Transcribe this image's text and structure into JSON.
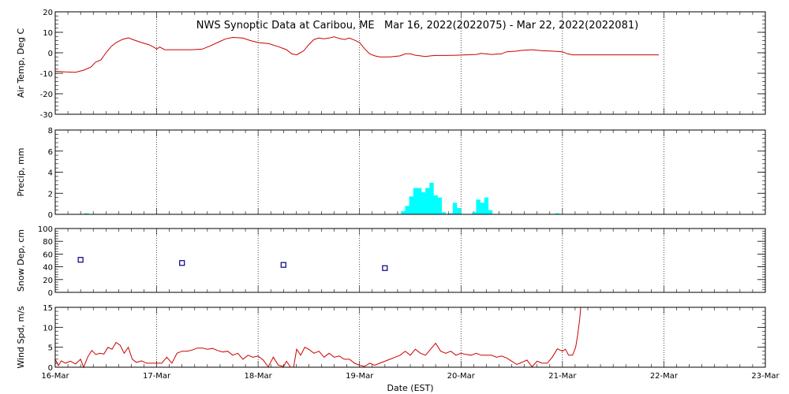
{
  "chart_data": {
    "type": "line",
    "title": "NWS Synoptic Data at Caribou, ME   Mar 16, 2022(2022075) - Mar 22, 2022(2022081)",
    "xlabel": "Date (EST)",
    "x_ticks": [
      "16-Mar",
      "17-Mar",
      "18-Mar",
      "19-Mar",
      "20-Mar",
      "21-Mar",
      "22-Mar",
      "23-Mar"
    ],
    "xlim_days": [
      0,
      7
    ],
    "grid": "dotted vertical",
    "panels": [
      {
        "key": "temp",
        "type": "line",
        "ylabel": "Air Temp, Deg C",
        "ylim": [
          -30,
          20
        ],
        "yticks": [
          -30,
          -20,
          -10,
          0,
          10,
          20
        ],
        "color": "#cc0000",
        "points": [
          [
            0.0,
            -9
          ],
          [
            0.1,
            -9.3
          ],
          [
            0.2,
            -9.5
          ],
          [
            0.28,
            -8.5
          ],
          [
            0.35,
            -7
          ],
          [
            0.4,
            -4.5
          ],
          [
            0.45,
            -3.5
          ],
          [
            0.5,
            0
          ],
          [
            0.55,
            3
          ],
          [
            0.6,
            5
          ],
          [
            0.66,
            6.5
          ],
          [
            0.72,
            7.3
          ],
          [
            0.78,
            6.2
          ],
          [
            0.85,
            5
          ],
          [
            0.92,
            4
          ],
          [
            0.97,
            2.8
          ],
          [
            1.0,
            1.8
          ],
          [
            1.03,
            2.8
          ],
          [
            1.08,
            1.5
          ],
          [
            1.2,
            1.5
          ],
          [
            1.35,
            1.5
          ],
          [
            1.45,
            1.8
          ],
          [
            1.52,
            3.2
          ],
          [
            1.6,
            5
          ],
          [
            1.68,
            6.8
          ],
          [
            1.75,
            7.5
          ],
          [
            1.85,
            7.2
          ],
          [
            1.92,
            6
          ],
          [
            2.0,
            5
          ],
          [
            2.1,
            4.5
          ],
          [
            2.2,
            3
          ],
          [
            2.28,
            1.5
          ],
          [
            2.33,
            -0.5
          ],
          [
            2.38,
            -1
          ],
          [
            2.45,
            1
          ],
          [
            2.5,
            4
          ],
          [
            2.55,
            6.5
          ],
          [
            2.6,
            7.2
          ],
          [
            2.65,
            6.8
          ],
          [
            2.7,
            7.2
          ],
          [
            2.75,
            7.8
          ],
          [
            2.8,
            7
          ],
          [
            2.85,
            6.5
          ],
          [
            2.9,
            7.2
          ],
          [
            2.95,
            6.2
          ],
          [
            3.0,
            5
          ],
          [
            3.05,
            2
          ],
          [
            3.1,
            -0.5
          ],
          [
            3.15,
            -1.5
          ],
          [
            3.2,
            -2
          ],
          [
            3.3,
            -2
          ],
          [
            3.4,
            -1.5
          ],
          [
            3.45,
            -0.5
          ],
          [
            3.5,
            -0.5
          ],
          [
            3.55,
            -1.2
          ],
          [
            3.6,
            -1.5
          ],
          [
            3.65,
            -1.8
          ],
          [
            3.7,
            -1.5
          ],
          [
            3.75,
            -1.3
          ],
          [
            3.85,
            -1.3
          ],
          [
            3.95,
            -1.2
          ],
          [
            4.05,
            -1
          ],
          [
            4.15,
            -0.8
          ],
          [
            4.2,
            -0.3
          ],
          [
            4.3,
            -0.8
          ],
          [
            4.4,
            -0.5
          ],
          [
            4.45,
            0.5
          ],
          [
            4.55,
            0.8
          ],
          [
            4.6,
            1.2
          ],
          [
            4.7,
            1.5
          ],
          [
            4.8,
            1
          ],
          [
            4.9,
            0.8
          ],
          [
            5.0,
            0.5
          ],
          [
            5.05,
            -0.5
          ],
          [
            5.1,
            -1
          ],
          [
            5.3,
            -1
          ],
          [
            5.5,
            -1
          ],
          [
            5.7,
            -1
          ],
          [
            5.95,
            -1
          ]
        ]
      },
      {
        "key": "precip",
        "type": "bar",
        "ylabel": "Precip, mm",
        "ylim": [
          0,
          8
        ],
        "yticks": [
          0,
          2,
          4,
          6,
          8
        ],
        "color": "#00ffff",
        "bar_width_days": 0.042,
        "bars": [
          [
            0.31,
            0.1
          ],
          [
            4.95,
            0.1
          ],
          [
            3.43,
            0.3
          ],
          [
            3.47,
            0.8
          ],
          [
            3.51,
            1.7
          ],
          [
            3.55,
            2.5
          ],
          [
            3.59,
            2.5
          ],
          [
            3.63,
            2.1
          ],
          [
            3.67,
            2.5
          ],
          [
            3.71,
            3
          ],
          [
            3.75,
            1.8
          ],
          [
            3.79,
            1.6
          ],
          [
            3.83,
            0.2
          ],
          [
            3.9,
            0.1
          ],
          [
            3.94,
            1.1
          ],
          [
            3.98,
            0.6
          ],
          [
            4.13,
            0.2
          ],
          [
            4.17,
            1.4
          ],
          [
            4.21,
            1.1
          ],
          [
            4.25,
            1.6
          ],
          [
            4.29,
            0.4
          ]
        ]
      },
      {
        "key": "snow",
        "type": "scatter",
        "ylabel": "Snow Dep, cm",
        "ylim": [
          0,
          100
        ],
        "yticks": [
          0,
          20,
          40,
          60,
          80,
          100
        ],
        "color": "#000080",
        "points": [
          [
            0.25,
            51
          ],
          [
            1.25,
            46
          ],
          [
            2.25,
            43
          ],
          [
            3.25,
            38
          ]
        ]
      },
      {
        "key": "wind",
        "type": "line",
        "ylabel": "Wind Spd, m/s",
        "ylim": [
          0,
          15
        ],
        "yticks": [
          0,
          5,
          10,
          15
        ],
        "color": "#cc0000",
        "points": [
          [
            0.0,
            2
          ],
          [
            0.03,
            0.4
          ],
          [
            0.06,
            1.6
          ],
          [
            0.1,
            1
          ],
          [
            0.15,
            1.5
          ],
          [
            0.2,
            0.8
          ],
          [
            0.25,
            2
          ],
          [
            0.28,
            0
          ],
          [
            0.32,
            2.5
          ],
          [
            0.36,
            4.2
          ],
          [
            0.4,
            3.2
          ],
          [
            0.44,
            3.5
          ],
          [
            0.48,
            3.3
          ],
          [
            0.52,
            5
          ],
          [
            0.56,
            4.5
          ],
          [
            0.6,
            6.2
          ],
          [
            0.64,
            5.5
          ],
          [
            0.68,
            3.5
          ],
          [
            0.72,
            5
          ],
          [
            0.76,
            2
          ],
          [
            0.8,
            1.2
          ],
          [
            0.85,
            1.6
          ],
          [
            0.9,
            1
          ],
          [
            0.95,
            1
          ],
          [
            1.0,
            1
          ],
          [
            1.05,
            1
          ],
          [
            1.1,
            2.5
          ],
          [
            1.15,
            1
          ],
          [
            1.2,
            3.5
          ],
          [
            1.25,
            4
          ],
          [
            1.3,
            4
          ],
          [
            1.35,
            4.3
          ],
          [
            1.4,
            4.8
          ],
          [
            1.45,
            4.8
          ],
          [
            1.5,
            4.5
          ],
          [
            1.55,
            4.7
          ],
          [
            1.6,
            4.2
          ],
          [
            1.65,
            3.8
          ],
          [
            1.7,
            4
          ],
          [
            1.75,
            3
          ],
          [
            1.8,
            3.5
          ],
          [
            1.85,
            2
          ],
          [
            1.9,
            3
          ],
          [
            1.95,
            2.5
          ],
          [
            2.0,
            2.8
          ],
          [
            2.05,
            1.8
          ],
          [
            2.1,
            0.1
          ],
          [
            2.15,
            2.5
          ],
          [
            2.2,
            0.5
          ],
          [
            2.25,
            0.2
          ],
          [
            2.28,
            1.5
          ],
          [
            2.32,
            0
          ],
          [
            2.35,
            0
          ],
          [
            2.38,
            4.5
          ],
          [
            2.42,
            3
          ],
          [
            2.46,
            5
          ],
          [
            2.5,
            4.5
          ],
          [
            2.55,
            3.5
          ],
          [
            2.6,
            4
          ],
          [
            2.65,
            2.5
          ],
          [
            2.7,
            3.5
          ],
          [
            2.75,
            2.5
          ],
          [
            2.8,
            2.8
          ],
          [
            2.85,
            2
          ],
          [
            2.9,
            2
          ],
          [
            2.95,
            1
          ],
          [
            3.0,
            0.5
          ],
          [
            3.05,
            0.2
          ],
          [
            3.1,
            1
          ],
          [
            3.15,
            0.5
          ],
          [
            3.2,
            1
          ],
          [
            3.25,
            1.5
          ],
          [
            3.3,
            2
          ],
          [
            3.35,
            2.5
          ],
          [
            3.4,
            3
          ],
          [
            3.45,
            4
          ],
          [
            3.5,
            3
          ],
          [
            3.55,
            4.5
          ],
          [
            3.6,
            3.5
          ],
          [
            3.65,
            3
          ],
          [
            3.7,
            4.5
          ],
          [
            3.75,
            6
          ],
          [
            3.8,
            4
          ],
          [
            3.85,
            3.5
          ],
          [
            3.9,
            4
          ],
          [
            3.95,
            3
          ],
          [
            4.0,
            3.5
          ],
          [
            4.05,
            3.2
          ],
          [
            4.1,
            3
          ],
          [
            4.15,
            3.5
          ],
          [
            4.2,
            3
          ],
          [
            4.25,
            3
          ],
          [
            4.3,
            3
          ],
          [
            4.35,
            2.5
          ],
          [
            4.4,
            2.8
          ],
          [
            4.45,
            2.3
          ],
          [
            4.5,
            1.5
          ],
          [
            4.55,
            0.7
          ],
          [
            4.6,
            1.2
          ],
          [
            4.65,
            1.8
          ],
          [
            4.7,
            0.1
          ],
          [
            4.75,
            1.5
          ],
          [
            4.8,
            1
          ],
          [
            4.85,
            1
          ],
          [
            4.9,
            2.5
          ],
          [
            4.95,
            4.6
          ],
          [
            5.0,
            4
          ],
          [
            5.03,
            4.5
          ],
          [
            5.06,
            3
          ],
          [
            5.1,
            3
          ],
          [
            5.13,
            5
          ],
          [
            5.15,
            8
          ],
          [
            5.17,
            12
          ],
          [
            5.18,
            15
          ]
        ]
      }
    ]
  }
}
